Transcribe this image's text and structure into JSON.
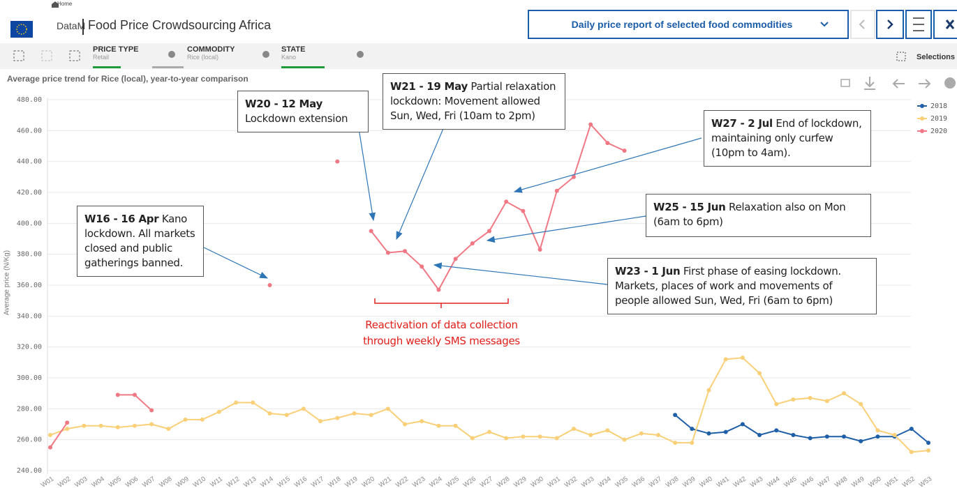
{
  "header": {
    "home": "Home",
    "brand": "DataM",
    "title": "Food Price Crowdsourcing Africa",
    "report": "Daily price report of selected food commodities",
    "selections": "Selections"
  },
  "filters": [
    {
      "label": "PRICE TYPE",
      "value": "Retail"
    },
    {
      "label": "COMMODITY",
      "value": "Rice (local)"
    },
    {
      "label": "STATE",
      "value": "Kano"
    }
  ],
  "chart_data": {
    "type": "line",
    "title": "Average price trend for Rice (local), year-to-year comparison",
    "y_label": "Average price (N/Kg)",
    "categories": [
      "W01",
      "W02",
      "W03",
      "W04",
      "W05",
      "W06",
      "W07",
      "W08",
      "W09",
      "W10",
      "W11",
      "W12",
      "W13",
      "W14",
      "W15",
      "W16",
      "W17",
      "W18",
      "W19",
      "W20",
      "W21",
      "W22",
      "W23",
      "W24",
      "W25",
      "W26",
      "W27",
      "W28",
      "W29",
      "W30",
      "W31",
      "W32",
      "W33",
      "W34",
      "W35",
      "W36",
      "W37",
      "W38",
      "W39",
      "W40",
      "W41",
      "W42",
      "W43",
      "W44",
      "W45",
      "W46",
      "W47",
      "W48",
      "W49",
      "W50",
      "W51",
      "W52",
      "W53"
    ],
    "series": [
      {
        "name": "2018",
        "color": "#1f5fa8",
        "values": [
          null,
          null,
          null,
          null,
          null,
          null,
          null,
          null,
          null,
          null,
          null,
          null,
          null,
          null,
          null,
          null,
          null,
          null,
          null,
          null,
          null,
          null,
          null,
          null,
          null,
          null,
          null,
          null,
          null,
          null,
          null,
          null,
          null,
          null,
          null,
          null,
          null,
          276,
          267,
          264,
          265,
          270,
          263,
          266,
          263,
          261,
          262,
          262,
          259,
          262,
          262,
          267,
          258
        ]
      },
      {
        "name": "2019",
        "color": "#f9cf78",
        "values": [
          263,
          267,
          269,
          269,
          268,
          269,
          270,
          267,
          273,
          273,
          278,
          284,
          284,
          277,
          276,
          280,
          272,
          274,
          277,
          276,
          280,
          270,
          272,
          269,
          269,
          261,
          265,
          261,
          262,
          262,
          261,
          267,
          263,
          266,
          260,
          264,
          263,
          258,
          258,
          292,
          312,
          313,
          303,
          283,
          286,
          287,
          285,
          290,
          283,
          266,
          263,
          252,
          253
        ]
      },
      {
        "name": "2020",
        "color": "#f07884",
        "values": [
          255,
          271,
          null,
          null,
          289,
          289,
          279,
          null,
          null,
          null,
          null,
          null,
          null,
          360,
          null,
          null,
          null,
          440,
          null,
          395,
          381,
          382,
          372,
          357,
          377,
          387,
          395,
          414,
          408,
          383,
          421,
          430,
          464,
          452,
          447,
          null,
          null,
          null,
          null,
          null,
          null,
          null,
          null,
          null,
          null,
          null,
          null,
          null,
          null,
          null,
          null,
          null,
          null
        ]
      }
    ],
    "ylim": [
      240,
      480
    ],
    "yticks": [
      {
        "value": 240,
        "label": "240.00"
      },
      {
        "value": 260,
        "label": "260.00"
      },
      {
        "value": 280,
        "label": "280.00"
      },
      {
        "value": 300,
        "label": "300.00"
      },
      {
        "value": 320,
        "label": "320.00"
      },
      {
        "value": 340,
        "label": "340.00"
      },
      {
        "value": 360,
        "label": "360.00"
      },
      {
        "value": 380,
        "label": "380.00"
      },
      {
        "value": 400,
        "label": "400.00"
      },
      {
        "value": 420,
        "label": "420.00"
      },
      {
        "value": 440,
        "label": "440.00"
      },
      {
        "value": 460,
        "label": "460.00"
      },
      {
        "value": 480,
        "label": "480.00"
      }
    ],
    "grid": true,
    "legend": "top-right",
    "annotations": [
      {
        "label": "W16 - 16 Apr",
        "text": "Kano lockdown. All markets closed and public gatherings banned."
      },
      {
        "label": "W20 - 12 May",
        "text": "Lockdown extension"
      },
      {
        "label": "W21 - 19 May",
        "text": "Partial relaxation lockdown: Movement allowed Sun, Wed, Fri (10am to 2pm)"
      },
      {
        "label": "W27 - 2 Jul",
        "text": "End of lockdown, maintaining only curfew (10pm to 4am)."
      },
      {
        "label": "W25 - 15 Jun",
        "text": "Relaxation also on Mon (6am to 6pm)"
      },
      {
        "label": "W23 - 1 Jun",
        "text": "First phase of easing lockdown. Markets, places of work and movements of people allowed Sun, Wed, Fri (6am to 6pm)"
      }
    ],
    "note": "Reactivation of data collection through weekly SMS messages"
  }
}
